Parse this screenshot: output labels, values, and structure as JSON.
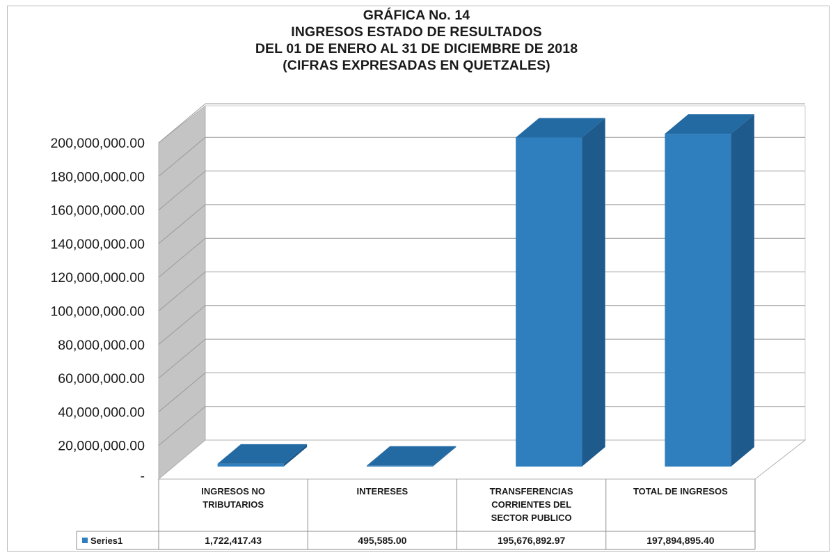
{
  "chart_data": {
    "type": "bar",
    "title_lines": [
      "GRÁFICA No. 14",
      "INGRESOS ESTADO DE RESULTADOS",
      "DEL 01 DE ENERO AL 31 DE DICIEMBRE DE 2018",
      "(CIFRAS EXPRESADAS EN QUETZALES)"
    ],
    "categories": [
      [
        "INGRESOS NO",
        "TRIBUTARIOS"
      ],
      [
        "INTERESES"
      ],
      [
        "TRANSFERENCIAS",
        "CORRIENTES DEL",
        "SECTOR PUBLICO"
      ],
      [
        "TOTAL DE INGRESOS"
      ]
    ],
    "series": [
      {
        "name": "Series1",
        "values": [
          1722417.43,
          495585.0,
          195676892.97,
          197894895.4
        ],
        "labels": [
          "1,722,417.43",
          "495,585.00",
          "195,676,892.97",
          "197,894,895.40"
        ]
      }
    ],
    "ylim": [
      0,
      200000000
    ],
    "yticks": [
      "-",
      "20,000,000.00",
      "40,000,000.00",
      "60,000,000.00",
      "80,000,000.00",
      "100,000,000.00",
      "120,000,000.00",
      "140,000,000.00",
      "160,000,000.00",
      "180,000,000.00",
      "200,000,000.00"
    ],
    "grid": true,
    "legend": "data-table",
    "style": "3d-column",
    "colors": {
      "bar_front": "#2f7fbf",
      "bar_side": "#1f5a8c",
      "bar_top": "#236aa3",
      "back_wall": "#ffffff",
      "side_wall": "#c4c4c4",
      "grid": "#9a9a9a",
      "legend_key": "#2f7fbf"
    }
  }
}
